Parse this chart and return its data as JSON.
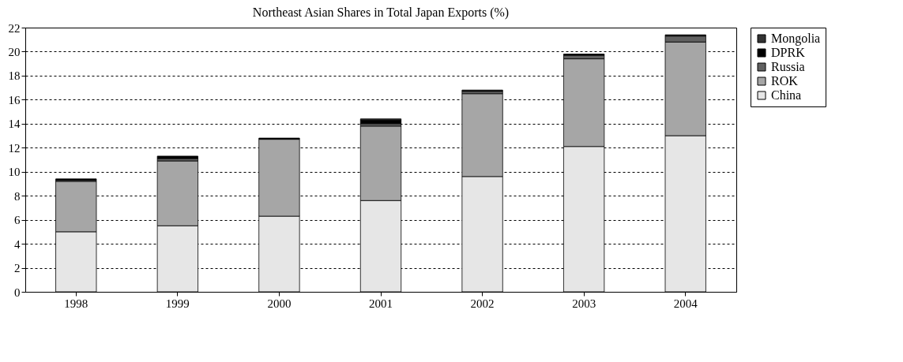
{
  "chart_data": {
    "type": "bar",
    "title": "Northeast Asian Shares in Total Japan Exports (%)",
    "stacked": true,
    "categories": [
      "1998",
      "1999",
      "2000",
      "2001",
      "2002",
      "2003",
      "2004"
    ],
    "series": [
      {
        "name": "China",
        "color": "#e6e6e6",
        "values": [
          5.0,
          5.5,
          6.3,
          7.6,
          9.6,
          12.1,
          13.0
        ]
      },
      {
        "name": "ROK",
        "color": "#a6a6a6",
        "values": [
          4.2,
          5.4,
          6.4,
          6.2,
          6.9,
          7.3,
          7.8
        ]
      },
      {
        "name": "Russia",
        "color": "#606060",
        "values": [
          0.1,
          0.2,
          null,
          0.2,
          0.2,
          0.3,
          0.5
        ]
      },
      {
        "name": "DPRK",
        "color": "#000000",
        "values": [
          0.1,
          0.2,
          0.1,
          0.3,
          0.1,
          0.1,
          0.1
        ]
      },
      {
        "name": "Mongolia",
        "color": "#333333",
        "values": [
          null,
          null,
          null,
          0.1,
          null,
          null,
          null
        ]
      }
    ],
    "ylim": [
      0,
      22
    ],
    "yticks": [
      0,
      2,
      4,
      6,
      8,
      10,
      12,
      14,
      16,
      18,
      20,
      22
    ],
    "grid": "y",
    "legend": "right"
  }
}
